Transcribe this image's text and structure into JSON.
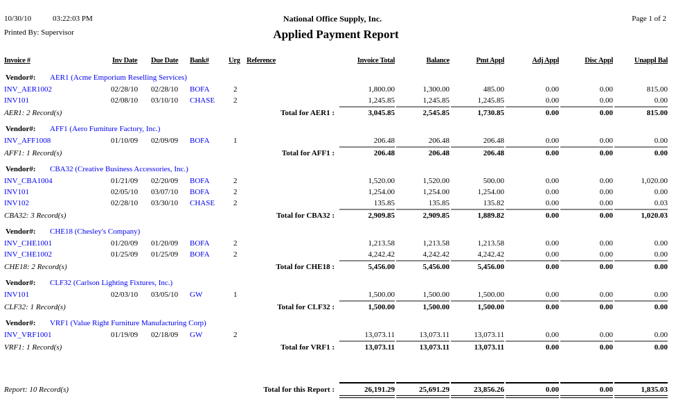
{
  "header": {
    "date": "10/30/10",
    "time": "03:22:03 PM",
    "printed_by": "Printed By: Supervisor",
    "company": "National Office Supply, Inc.",
    "title": "Applied Payment Report",
    "page": "Page 1 of 2"
  },
  "columns": {
    "invoice": "Invoice #",
    "inv_date": "Inv Date",
    "due_date": "Due Date",
    "bank": "Bank#",
    "urg": "Urg",
    "reference": "Reference",
    "invoice_total": "Invoice Total",
    "balance": "Balance",
    "pmt_appl": "Pmt Appl",
    "adj_appl": "Adj Appl",
    "disc_appl": "Disc Appl",
    "unappl_bal": "Unappl Bal"
  },
  "vendor_label": "Vendor#:",
  "vendors": [
    {
      "vendor": "AER1 (Acme Emporium Reselling Services)",
      "rows": [
        [
          "INV_AER1002",
          "02/28/10",
          "02/28/10",
          "BOFA",
          "2",
          "",
          "1,800.00",
          "1,300.00",
          "485.00",
          "0.00",
          "0.00",
          "815.00"
        ],
        [
          "INV101",
          "02/08/10",
          "03/10/10",
          "CHASE",
          "2",
          "",
          "1,245.85",
          "1,245.85",
          "1,245.85",
          "0.00",
          "0.00",
          "0.00"
        ]
      ],
      "records": "AER1: 2 Record(s)",
      "total_label": "Total for AER1 :",
      "totals": [
        "3,045.85",
        "2,545.85",
        "1,730.85",
        "0.00",
        "0.00",
        "815.00"
      ]
    },
    {
      "vendor": "AFF1 (Aero Furniture Factory, Inc.)",
      "rows": [
        [
          "INV_AFF1008",
          "01/10/09",
          "02/09/09",
          "BOFA",
          "1",
          "",
          "206.48",
          "206.48",
          "206.48",
          "0.00",
          "0.00",
          "0.00"
        ]
      ],
      "records": "AFF1: 1 Record(s)",
      "total_label": "Total for AFF1 :",
      "totals": [
        "206.48",
        "206.48",
        "206.48",
        "0.00",
        "0.00",
        "0.00"
      ]
    },
    {
      "vendor": "CBA32 (Creative Business Accessories, Inc.)",
      "rows": [
        [
          "INV_CBA1004",
          "01/21/09",
          "02/20/09",
          "BOFA",
          "2",
          "",
          "1,520.00",
          "1,520.00",
          "500.00",
          "0.00",
          "0.00",
          "1,020.00"
        ],
        [
          "INV101",
          "02/05/10",
          "03/07/10",
          "BOFA",
          "2",
          "",
          "1,254.00",
          "1,254.00",
          "1,254.00",
          "0.00",
          "0.00",
          "0.00"
        ],
        [
          "INV102",
          "02/28/10",
          "03/30/10",
          "CHASE",
          "2",
          "",
          "135.85",
          "135.85",
          "135.82",
          "0.00",
          "0.00",
          "0.03"
        ]
      ],
      "records": "CBA32: 3 Record(s)",
      "total_label": "Total for CBA32 :",
      "totals": [
        "2,909.85",
        "2,909.85",
        "1,889.82",
        "0.00",
        "0.00",
        "1,020.03"
      ]
    },
    {
      "vendor": "CHE18 (Chesley's Company)",
      "rows": [
        [
          "INV_CHE1001",
          "01/20/09",
          "01/20/09",
          "BOFA",
          "2",
          "",
          "1,213.58",
          "1,213.58",
          "1,213.58",
          "0.00",
          "0.00",
          "0.00"
        ],
        [
          "INV_CHE1002",
          "01/25/09",
          "01/25/09",
          "BOFA",
          "2",
          "",
          "4,242.42",
          "4,242.42",
          "4,242.42",
          "0.00",
          "0.00",
          "0.00"
        ]
      ],
      "records": "CHE18: 2 Record(s)",
      "total_label": "Total for CHE18 :",
      "totals": [
        "5,456.00",
        "5,456.00",
        "5,456.00",
        "0.00",
        "0.00",
        "0.00"
      ]
    },
    {
      "vendor": "CLF32 (Carlson Lighting Fixtures, Inc.)",
      "rows": [
        [
          "INV101",
          "02/03/10",
          "03/05/10",
          "GW",
          "1",
          "",
          "1,500.00",
          "1,500.00",
          "1,500.00",
          "0.00",
          "0.00",
          "0.00"
        ]
      ],
      "records": "CLF32: 1 Record(s)",
      "total_label": "Total for CLF32 :",
      "totals": [
        "1,500.00",
        "1,500.00",
        "1,500.00",
        "0.00",
        "0.00",
        "0.00"
      ]
    },
    {
      "vendor": "VRF1 (Value Right Furniture Manufacturing Corp)",
      "rows": [
        [
          "INV_VRF1001",
          "01/19/09",
          "02/18/09",
          "GW",
          "2",
          "",
          "13,073.11",
          "13,073.11",
          "13,073.11",
          "0.00",
          "0.00",
          "0.00"
        ]
      ],
      "records": "VRF1: 1 Record(s)",
      "total_label": "Total for VRF1 :",
      "totals": [
        "13,073.11",
        "13,073.11",
        "13,073.11",
        "0.00",
        "0.00",
        "0.00"
      ]
    }
  ],
  "report_total": {
    "records": "Report: 10 Record(s)",
    "label": "Total for this Report :",
    "totals": [
      "26,191.29",
      "25,691.29",
      "23,856.26",
      "0.00",
      "0.00",
      "1,835.03"
    ]
  },
  "colors": {
    "link": "#0000ee",
    "rule": "#888888"
  }
}
